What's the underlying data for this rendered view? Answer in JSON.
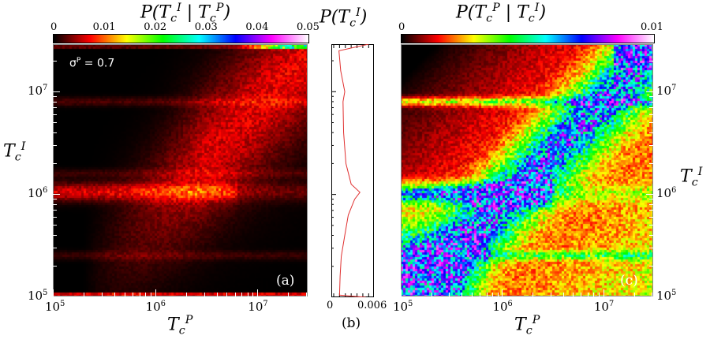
{
  "chart_data": [
    {
      "panel": "(a)",
      "type": "heatmap",
      "title": "P(T_c^I | T_c^P)",
      "xlabel": "T_c^P",
      "ylabel": "T_c^I",
      "x_scale": "log",
      "y_scale": "log",
      "xlim": [
        100000,
        31000000
      ],
      "ylim": [
        100000,
        29000000
      ],
      "x_ticks": [
        "10^5",
        "10^6",
        "10^7"
      ],
      "y_ticks": [
        "10^5",
        "10^6",
        "10^7"
      ],
      "colorbar": {
        "range": [
          0,
          0.05
        ],
        "ticks": [
          "0",
          "0.01",
          "0.02",
          "0.03",
          "0.04",
          "0.05"
        ],
        "colormap": [
          "#000000",
          "#ff0000",
          "#ffff00",
          "#00ff00",
          "#00ffff",
          "#0000ff",
          "#ff00ff",
          "#ffffff"
        ]
      },
      "annotation": "σ^P = 0.7"
    },
    {
      "panel": "(b)",
      "type": "line",
      "title": "P(T_c^I)",
      "y_scale": "log",
      "ylim": [
        100000,
        29000000
      ],
      "xlim": [
        0,
        0.0065
      ],
      "x_ticks": [
        "0",
        "0.006"
      ],
      "color": "#e03030",
      "points": [
        {
          "T": 100000,
          "P": 0.0055
        },
        {
          "T": 105000,
          "P": 0.001
        },
        {
          "T": 160000,
          "P": 0.0011
        },
        {
          "T": 250000,
          "P": 0.0013
        },
        {
          "T": 400000,
          "P": 0.0019
        },
        {
          "T": 630000,
          "P": 0.0025
        },
        {
          "T": 900000,
          "P": 0.0036
        },
        {
          "T": 1050000,
          "P": 0.0045
        },
        {
          "T": 1260000,
          "P": 0.003
        },
        {
          "T": 2000000,
          "P": 0.0021
        },
        {
          "T": 4000000,
          "P": 0.0017
        },
        {
          "T": 8000000,
          "P": 0.0016
        },
        {
          "T": 10000000,
          "P": 0.0019
        },
        {
          "T": 16000000,
          "P": 0.0012
        },
        {
          "T": 25000000,
          "P": 0.0009
        },
        {
          "T": 29000000,
          "P": 0.006
        }
      ]
    },
    {
      "panel": "(c)",
      "type": "heatmap",
      "title": "P(T_c^P | T_c^I)",
      "xlabel": "T_c^P",
      "ylabel": "T_c^I",
      "x_scale": "log",
      "y_scale": "log",
      "xlim": [
        100000,
        31000000
      ],
      "ylim": [
        100000,
        29000000
      ],
      "x_ticks": [
        "10^5",
        "10^6",
        "10^7"
      ],
      "y_ticks": [
        "10^5",
        "10^6",
        "10^7"
      ],
      "colorbar": {
        "range": [
          0,
          0.01
        ],
        "ticks": [
          "0",
          "0.01"
        ],
        "colormap": [
          "#000000",
          "#ff0000",
          "#ffff00",
          "#00ff00",
          "#00ffff",
          "#0000ff",
          "#ff00ff",
          "#ffffff"
        ]
      }
    }
  ],
  "labels": {
    "a_title_base": "P(T",
    "a_title_mid": " | T",
    "c": "c",
    "I": "I",
    "P": "P",
    "close": ")",
    "b_title_base": "P(T",
    "sigma": "σ",
    "sigma_eq": " = 0.7",
    "T": "T",
    "e5": "10",
    "exp5": "5",
    "exp6": "6",
    "exp7": "7",
    "a": "(a)",
    "b": "(b)",
    "c_panel": "(c)",
    "cb_a": [
      "0",
      "0.01",
      "0.02",
      "0.03",
      "0.04",
      "0.05"
    ],
    "cb_c": [
      "0",
      "0.01"
    ],
    "b_ticks": [
      "0",
      "0.006"
    ]
  }
}
